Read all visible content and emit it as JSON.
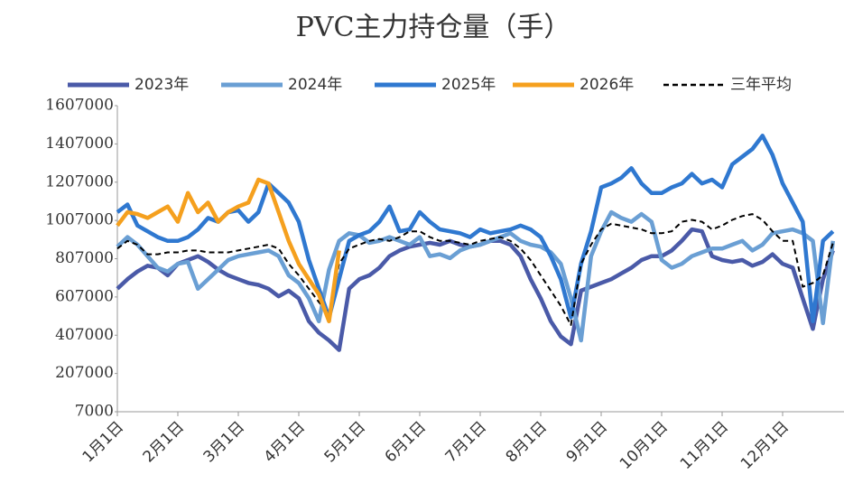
{
  "chart_data": {
    "type": "line",
    "title": "PVC主力持仓量（手）",
    "categories": [
      "1月1日",
      null,
      null,
      null,
      null,
      null,
      "2月1日",
      null,
      null,
      null,
      null,
      null,
      "3月1日",
      null,
      null,
      null,
      null,
      null,
      "4月1日",
      null,
      null,
      null,
      null,
      null,
      "5月1日",
      null,
      null,
      null,
      null,
      null,
      "6月1日",
      null,
      null,
      null,
      null,
      null,
      "7月1日",
      null,
      null,
      null,
      null,
      null,
      "8月1日",
      null,
      null,
      null,
      null,
      null,
      "9月1日",
      null,
      null,
      null,
      null,
      null,
      "10月1日",
      null,
      null,
      null,
      null,
      null,
      "11月1日",
      null,
      null,
      null,
      null,
      null,
      "12月1日",
      null,
      null,
      null,
      null,
      null
    ],
    "series": [
      {
        "name": "2023年",
        "color": "#4a5aa8",
        "values": [
          650000,
          700000,
          740000,
          770000,
          760000,
          720000,
          780000,
          800000,
          820000,
          790000,
          750000,
          720000,
          700000,
          680000,
          670000,
          650000,
          610000,
          640000,
          600000,
          480000,
          420000,
          380000,
          330000,
          650000,
          700000,
          720000,
          760000,
          820000,
          850000,
          870000,
          880000,
          890000,
          880000,
          900000,
          880000,
          870000,
          880000,
          900000,
          900000,
          880000,
          820000,
          700000,
          600000,
          480000,
          400000,
          360000,
          640000,
          660000,
          680000,
          700000,
          730000,
          760000,
          800000,
          820000,
          820000,
          850000,
          900000,
          960000,
          950000,
          820000,
          800000,
          790000,
          800000,
          770000,
          790000,
          830000,
          780000,
          760000,
          600000,
          440000,
          700000,
          850000
        ]
      },
      {
        "name": "2024年",
        "color": "#6a9fd4",
        "values": [
          870000,
          920000,
          880000,
          820000,
          760000,
          740000,
          780000,
          790000,
          650000,
          700000,
          750000,
          800000,
          820000,
          830000,
          840000,
          850000,
          820000,
          720000,
          680000,
          600000,
          480000,
          750000,
          900000,
          940000,
          930000,
          890000,
          900000,
          920000,
          900000,
          880000,
          920000,
          820000,
          830000,
          810000,
          850000,
          870000,
          880000,
          900000,
          920000,
          940000,
          900000,
          880000,
          870000,
          840000,
          780000,
          600000,
          380000,
          820000,
          950000,
          1050000,
          1020000,
          1000000,
          1040000,
          1000000,
          800000,
          760000,
          780000,
          820000,
          840000,
          860000,
          860000,
          880000,
          900000,
          850000,
          880000,
          940000,
          950000,
          960000,
          940000,
          900000,
          470000,
          900000
        ]
      },
      {
        "name": "2025年",
        "color": "#2f78d0",
        "values": [
          1050000,
          1090000,
          980000,
          950000,
          920000,
          900000,
          900000,
          920000,
          960000,
          1020000,
          1000000,
          1050000,
          1060000,
          1000000,
          1050000,
          1200000,
          1150000,
          1100000,
          1000000,
          800000,
          650000,
          500000,
          700000,
          900000,
          930000,
          950000,
          1000000,
          1080000,
          950000,
          960000,
          1050000,
          1000000,
          960000,
          950000,
          940000,
          920000,
          960000,
          940000,
          950000,
          960000,
          980000,
          960000,
          920000,
          820000,
          700000,
          500000,
          780000,
          950000,
          1180000,
          1200000,
          1230000,
          1280000,
          1200000,
          1150000,
          1150000,
          1180000,
          1200000,
          1250000,
          1200000,
          1220000,
          1180000,
          1300000,
          1340000,
          1380000,
          1450000,
          1350000,
          1200000,
          1100000,
          1000000,
          480000,
          900000,
          950000
        ]
      },
      {
        "name": "2026年",
        "color": "#f5a01e",
        "values": [
          980000,
          1050000,
          1040000,
          1020000,
          1050000,
          1080000,
          1000000,
          1150000,
          1050000,
          1100000,
          1000000,
          1050000,
          1080000,
          1100000,
          1220000,
          1200000,
          1050000,
          900000,
          780000,
          700000,
          620000,
          480000,
          850000,
          null,
          null,
          null,
          null,
          null,
          null,
          null,
          null,
          null,
          null,
          null,
          null,
          null,
          null,
          null,
          null,
          null,
          null,
          null,
          null,
          null,
          null,
          null,
          null,
          null,
          null,
          null,
          null,
          null,
          null,
          null,
          null,
          null,
          null,
          null,
          null,
          null,
          null,
          null,
          null,
          null,
          null,
          null,
          null,
          null,
          null,
          null,
          null,
          null
        ]
      },
      {
        "name": "三年平均",
        "color": "#000000",
        "style": "dashed",
        "values": [
          860000,
          900000,
          880000,
          830000,
          830000,
          840000,
          840000,
          850000,
          850000,
          840000,
          840000,
          840000,
          850000,
          860000,
          870000,
          880000,
          860000,
          780000,
          720000,
          650000,
          580000,
          520000,
          780000,
          860000,
          880000,
          900000,
          910000,
          900000,
          920000,
          950000,
          950000,
          920000,
          900000,
          900000,
          890000,
          880000,
          900000,
          910000,
          920000,
          900000,
          860000,
          800000,
          720000,
          640000,
          560000,
          460000,
          780000,
          880000,
          960000,
          990000,
          980000,
          970000,
          960000,
          940000,
          940000,
          950000,
          1000000,
          1010000,
          1000000,
          960000,
          980000,
          1010000,
          1030000,
          1040000,
          1010000,
          950000,
          900000,
          900000,
          660000,
          680000,
          720000,
          890000
        ]
      }
    ],
    "ylim": [
      7000,
      1607000
    ],
    "yticks": [
      7000,
      207000,
      407000,
      607000,
      807000,
      1007000,
      1207000,
      1407000,
      1607000
    ],
    "legend": "top"
  }
}
